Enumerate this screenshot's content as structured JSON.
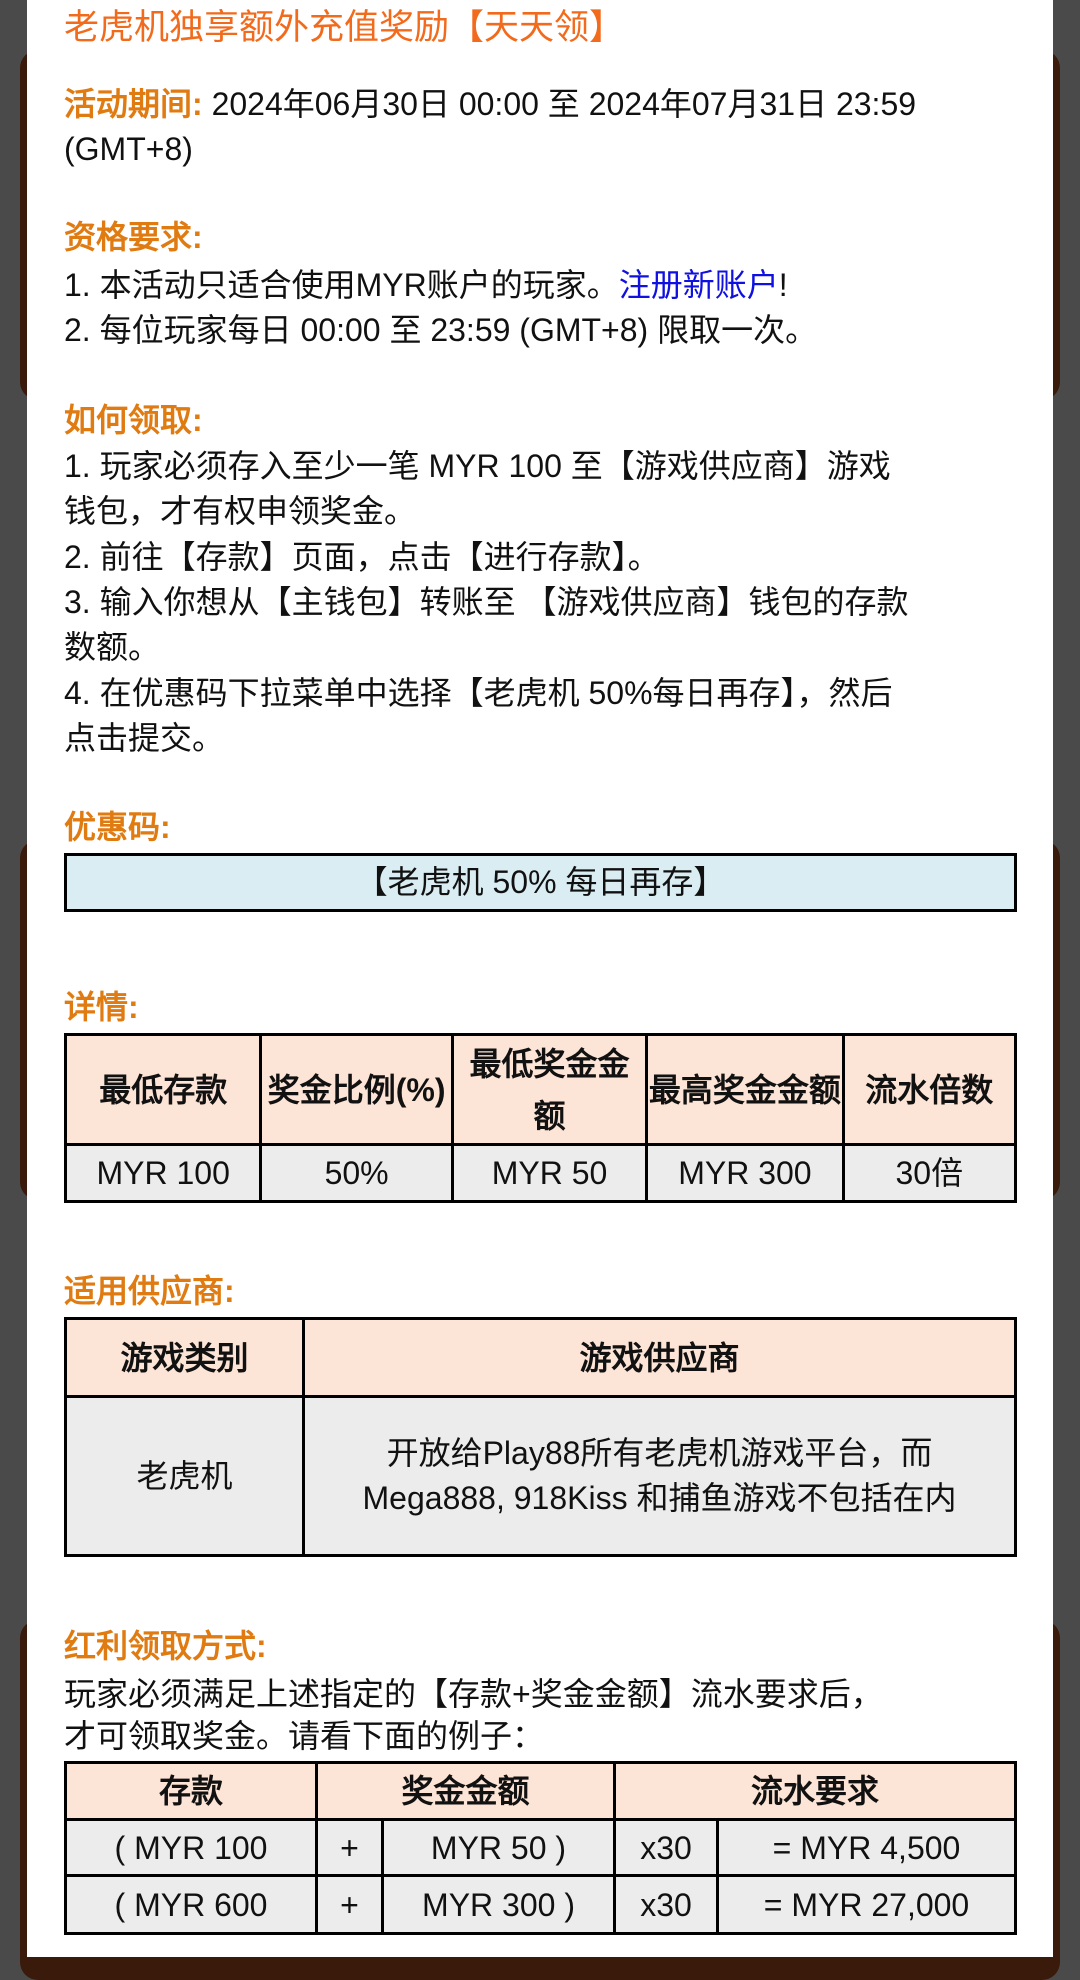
{
  "title": "老虎机独享额外充值奖励【天天领】",
  "period": {
    "label": "活动期间:",
    "value": " 2024年06月30日 00:00 至 2024年07月31日 23:59",
    "value_cont": "(GMT+8)"
  },
  "eligibility": {
    "label": "资格要求:",
    "line1": "1. 本活动只适合使用MYR账户的玩家。",
    "link": "注册新账户",
    "line1_end": "!",
    "line2": "2. 每位玩家每日 00:00 至 23:59 (GMT+8) 限取一次。"
  },
  "howto": {
    "label": "如何领取:",
    "lines": [
      "1. 玩家必须存入至少一笔 MYR 100 至【游戏供应商】游戏",
      "钱包，才有权申领奖金。",
      "2. 前往【存款】页面，点击【进行存款】。",
      "3. 输入你想从【主钱包】转账至 【游戏供应商】钱包的存款",
      "数额。",
      "4. 在优惠码下拉菜单中选择【老虎机  50%每日再存】，然后",
      "点击提交。"
    ]
  },
  "promo": {
    "label": "优惠码:",
    "code": "【老虎机 50% 每日再存】"
  },
  "details": {
    "label": "详情:",
    "headers": [
      "最低存款",
      "奖金比例(%)",
      "最低奖金金额",
      "最高奖金金额",
      "流水倍数"
    ],
    "row": [
      "MYR 100",
      "50%",
      "MYR 50",
      "MYR 300",
      "30倍"
    ]
  },
  "providers": {
    "label": "适用供应商:",
    "headers": [
      "游戏类别",
      "游戏供应商"
    ],
    "row": [
      "老虎机",
      "开放给Play88所有老虎机游戏平台，而 Mega888, 918Kiss 和捕鱼游戏不包括在内"
    ]
  },
  "claim": {
    "label": "红利领取方式:",
    "line1": "玩家必须满足上述指定的【存款+奖金金额】流水要求后，",
    "line2": "才可领取奖金。请看下面的例子：",
    "headers": [
      "存款",
      "奖金金额",
      "流水要求"
    ],
    "rows": [
      [
        "( MYR 100",
        "+",
        "MYR 50 )",
        "x30",
        "= MYR 4,500"
      ],
      [
        "( MYR 600",
        "+",
        "MYR 300 )",
        "x30",
        "= MYR 27,000"
      ]
    ]
  },
  "colors": {
    "title": "#f26a1b",
    "heading": "#e07b12",
    "link": "#1010e0",
    "table_header": "#fce4d6",
    "cell": "#ececec",
    "promo_bg": "#daedf3"
  }
}
